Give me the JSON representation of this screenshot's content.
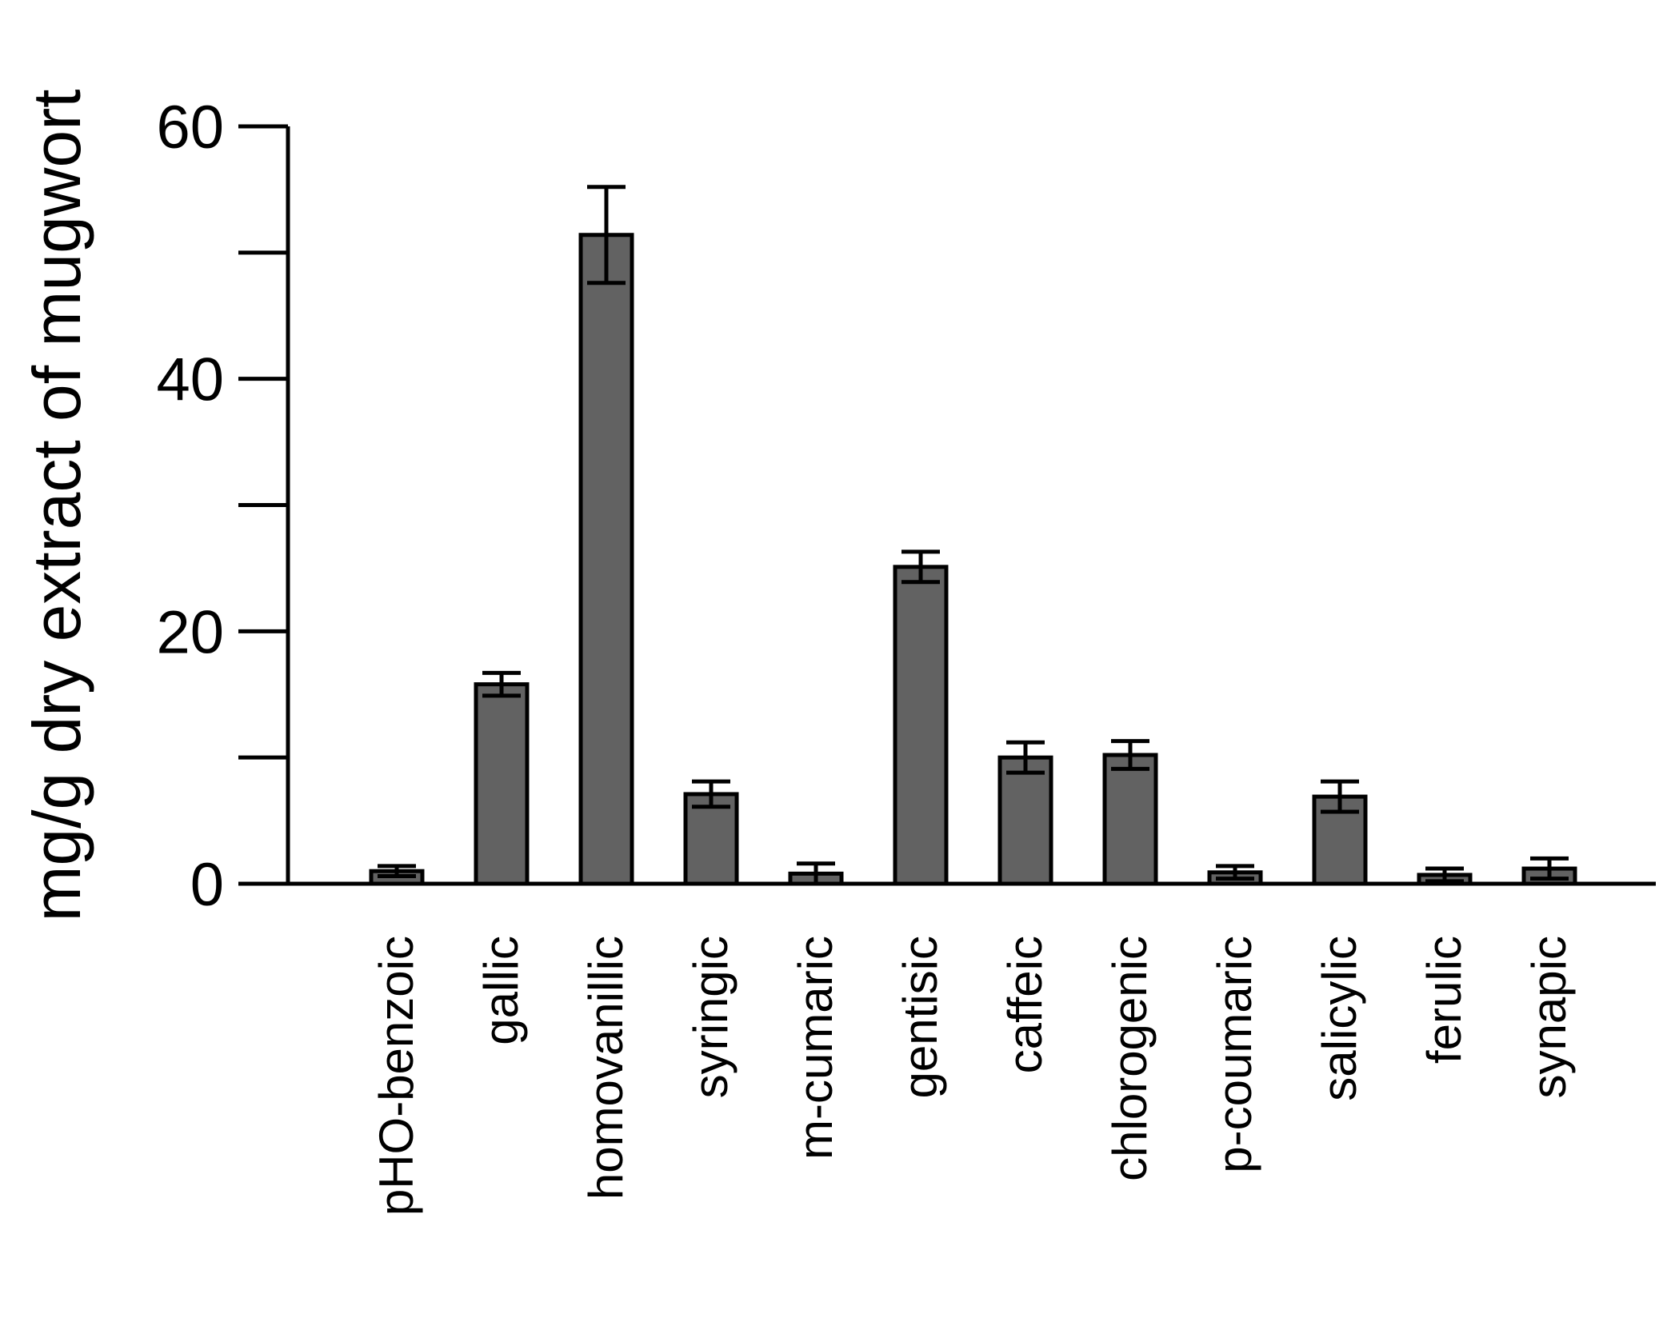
{
  "chart_data": {
    "type": "bar",
    "title": "",
    "xlabel": "",
    "ylabel": "mg/g dry extract of mugwort",
    "ylim": [
      0,
      60
    ],
    "y_ticks": [
      0,
      10,
      20,
      30,
      40,
      50,
      60
    ],
    "y_tick_labels": [
      "0",
      "",
      "20",
      "",
      "40",
      "",
      "60"
    ],
    "grid": false,
    "legend": "none",
    "categories": [
      "pHO-benzoic",
      "gallic",
      "homovanillic",
      "syringic",
      "m-cumaric",
      "gentisic",
      "caffeic",
      "chlorogenic",
      "p-coumaric",
      "salicylic",
      "ferulic",
      "synapic"
    ],
    "values": [
      1.0,
      15.8,
      51.4,
      7.1,
      0.8,
      25.1,
      10.0,
      10.2,
      0.9,
      6.9,
      0.7,
      1.2
    ],
    "errors": [
      0.4,
      0.9,
      3.8,
      1.0,
      0.8,
      1.2,
      1.2,
      1.1,
      0.5,
      1.2,
      0.5,
      0.8
    ],
    "colors": {
      "bar_fill": "#626262",
      "bar_stroke": "#000000",
      "axis": "#000000"
    }
  }
}
